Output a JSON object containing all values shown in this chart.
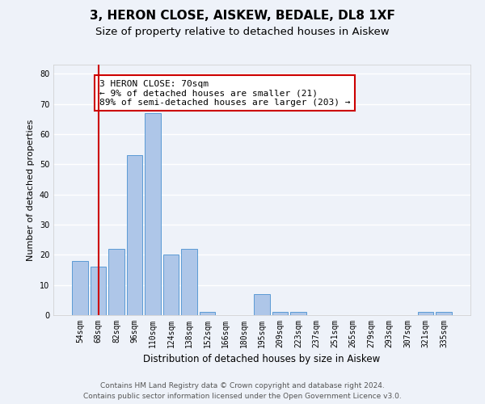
{
  "title": "3, HERON CLOSE, AISKEW, BEDALE, DL8 1XF",
  "subtitle": "Size of property relative to detached houses in Aiskew",
  "xlabel": "Distribution of detached houses by size in Aiskew",
  "ylabel": "Number of detached properties",
  "categories": [
    "54sqm",
    "68sqm",
    "82sqm",
    "96sqm",
    "110sqm",
    "124sqm",
    "138sqm",
    "152sqm",
    "166sqm",
    "180sqm",
    "195sqm",
    "209sqm",
    "223sqm",
    "237sqm",
    "251sqm",
    "265sqm",
    "279sqm",
    "293sqm",
    "307sqm",
    "321sqm",
    "335sqm"
  ],
  "values": [
    18,
    16,
    22,
    53,
    67,
    20,
    22,
    1,
    0,
    0,
    7,
    1,
    1,
    0,
    0,
    0,
    0,
    0,
    0,
    1,
    1
  ],
  "bar_color": "#aec6e8",
  "bar_edge_color": "#5b9bd5",
  "vline_x": 1,
  "vline_color": "#cc0000",
  "annotation_line1": "3 HERON CLOSE: 70sqm",
  "annotation_line2": "← 9% of detached houses are smaller (21)",
  "annotation_line3": "89% of semi-detached houses are larger (203) →",
  "annotation_box_color": "#ffffff",
  "annotation_box_edge": "#cc0000",
  "ylim": [
    0,
    83
  ],
  "yticks": [
    0,
    10,
    20,
    30,
    40,
    50,
    60,
    70,
    80
  ],
  "footer_line1": "Contains HM Land Registry data © Crown copyright and database right 2024.",
  "footer_line2": "Contains public sector information licensed under the Open Government Licence v3.0.",
  "background_color": "#eef2f9",
  "grid_color": "#ffffff",
  "title_fontsize": 11,
  "subtitle_fontsize": 9.5,
  "axis_label_fontsize": 8,
  "tick_fontsize": 7,
  "annotation_fontsize": 8,
  "footer_fontsize": 6.5
}
